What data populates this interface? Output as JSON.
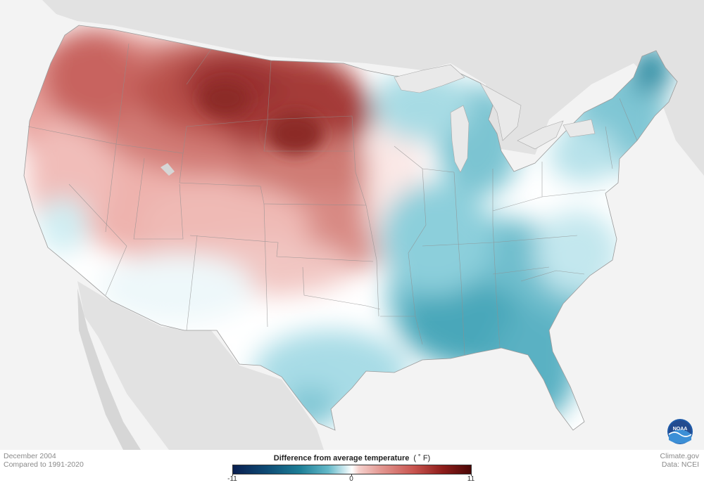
{
  "map": {
    "legend_title": "Difference from average temperature",
    "legend_unit": "( ˚ F)",
    "scale_min": "-11",
    "scale_mid": "0",
    "scale_max": "11",
    "period": "December 2004",
    "baseline": "Compared to 1991-2020",
    "credit_site": "Climate.gov",
    "credit_data": "Data: NCEI",
    "logo_text": "NOAA",
    "colors": {
      "cold_extreme": "#0a1f50",
      "cold": "#1d7e96",
      "neutral": "#ffffff",
      "warm": "#c8544f",
      "warm_extreme": "#4a0706",
      "land_outside": "#e2e2e2",
      "background": "#f3f3f3"
    },
    "anomaly_regions": [
      {
        "region": "Northern Plains / Montana",
        "level": "strong-warm"
      },
      {
        "region": "West / Rockies",
        "level": "warm"
      },
      {
        "region": "Southeast / Gulf",
        "level": "cool"
      },
      {
        "region": "Great Lakes / Northeast",
        "level": "cool"
      }
    ]
  }
}
